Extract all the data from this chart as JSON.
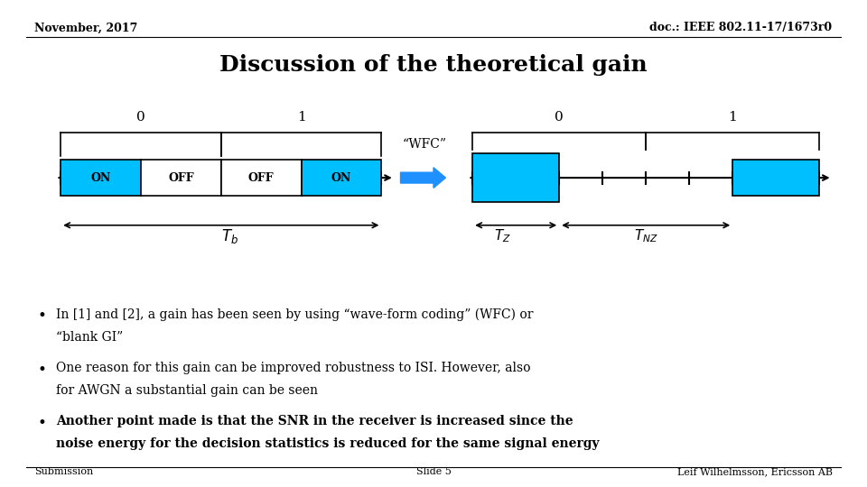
{
  "title": "Discussion of the theoretical gain",
  "header_left": "November, 2017",
  "header_right": "doc.: IEEE 802.11-17/1673r0",
  "footer_left": "Submission",
  "footer_center": "Slide 5",
  "footer_right": "Leif Wilhelmsson, Ericsson AB",
  "bullet1_line1": "In [1] and [2], a gain has been seen by using “wave-form coding” (WFC) or",
  "bullet1_line2": "“blank GI”",
  "bullet2_line1": "One reason for this gain can be improved robustness to ISI. However, also",
  "bullet2_line2": "for AWGN a substantial gain can be seen",
  "bullet3_line1": "Another point made is that the SNR in the receiver is increased since the",
  "bullet3_line2": "noise energy for the decision statistics is reduced for the same signal energy",
  "cyan_color": "#00BFFF",
  "arrow_color": "#1E90FF",
  "bg_color": "#FFFFFF",
  "text_color": "#000000"
}
